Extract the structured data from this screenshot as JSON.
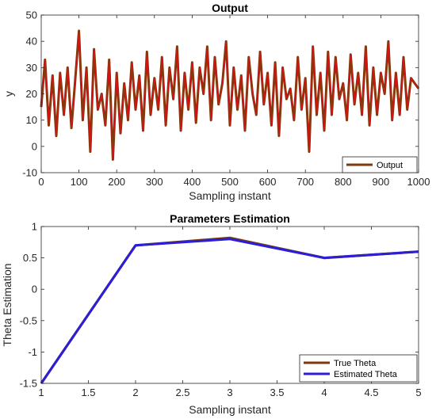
{
  "chart_data": [
    {
      "type": "line",
      "title": "Output",
      "xlabel": "Sampling instant",
      "ylabel": "y",
      "xlim": [
        0,
        1000
      ],
      "ylim": [
        -10,
        50
      ],
      "xticks": [
        "0",
        "100",
        "200",
        "300",
        "400",
        "500",
        "600",
        "700",
        "800",
        "900",
        "1000"
      ],
      "yticks": [
        "-10",
        "0",
        "10",
        "20",
        "30",
        "40",
        "50"
      ],
      "legend": "bottom-right",
      "grid": false,
      "series": [
        {
          "name": "Output",
          "color": "#7B3A0E",
          "x": [
            0,
            10,
            20,
            30,
            40,
            50,
            60,
            70,
            80,
            90,
            100,
            110,
            120,
            130,
            140,
            150,
            160,
            170,
            180,
            190,
            200,
            210,
            220,
            230,
            240,
            250,
            260,
            270,
            280,
            290,
            300,
            310,
            320,
            330,
            340,
            350,
            360,
            370,
            380,
            390,
            400,
            410,
            420,
            430,
            440,
            450,
            460,
            470,
            480,
            490,
            500,
            510,
            520,
            530,
            540,
            550,
            560,
            570,
            580,
            590,
            600,
            610,
            620,
            630,
            640,
            650,
            660,
            670,
            680,
            690,
            700,
            710,
            720,
            730,
            740,
            750,
            760,
            770,
            780,
            790,
            800,
            810,
            820,
            830,
            840,
            850,
            860,
            870,
            880,
            890,
            900,
            910,
            920,
            930,
            940,
            950,
            960,
            970,
            980,
            990,
            1000
          ],
          "y": [
            15,
            33,
            8,
            27,
            4,
            28,
            12,
            30,
            7,
            25,
            44,
            10,
            30,
            -2,
            37,
            14,
            20,
            8,
            33,
            -5,
            28,
            5,
            24,
            10,
            32,
            14,
            27,
            6,
            36,
            12,
            26,
            14,
            34,
            8,
            30,
            18,
            38,
            6,
            28,
            14,
            32,
            9,
            30,
            20,
            38,
            10,
            34,
            16,
            24,
            40,
            8,
            30,
            14,
            27,
            6,
            34,
            20,
            12,
            36,
            16,
            28,
            8,
            32,
            4,
            30,
            18,
            22,
            10,
            34,
            14,
            26,
            -2,
            38,
            12,
            28,
            6,
            36,
            12,
            34,
            18,
            24,
            10,
            35,
            16,
            28,
            12,
            38,
            8,
            30,
            12,
            28,
            20,
            40,
            10,
            28,
            12,
            34,
            14,
            26,
            24,
            22
          ]
        }
      ]
    },
    {
      "type": "line",
      "title": "Parameters Estimation",
      "xlabel": "Sampling instant",
      "ylabel": "Theta Estimation",
      "xlim": [
        1,
        5
      ],
      "ylim": [
        -1.5,
        1
      ],
      "xticks": [
        "1",
        "1.5",
        "2",
        "2.5",
        "3",
        "3.5",
        "4",
        "4.5",
        "5"
      ],
      "yticks": [
        "-1.5",
        "-1",
        "-0.5",
        "0",
        "0.5",
        "1"
      ],
      "legend": "bottom-right",
      "grid": false,
      "series": [
        {
          "name": "True Theta",
          "color": "#7B3A0E",
          "x": [
            1,
            2,
            3,
            4,
            5
          ],
          "y": [
            -1.5,
            0.7,
            0.82,
            0.5,
            0.6
          ]
        },
        {
          "name": "Estimated Theta",
          "color": "#2B1ED8",
          "x": [
            1,
            2,
            3,
            4,
            5
          ],
          "y": [
            -1.5,
            0.7,
            0.8,
            0.5,
            0.6
          ]
        }
      ]
    }
  ]
}
